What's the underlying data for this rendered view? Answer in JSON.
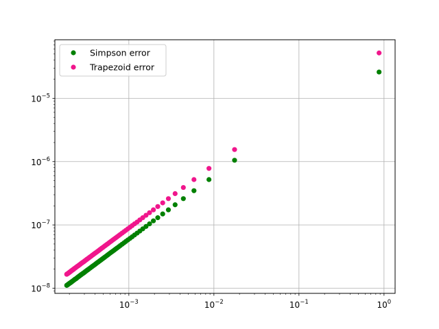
{
  "chart_data": {
    "type": "scatter",
    "title": "",
    "xlabel": "",
    "ylabel": "",
    "x_scale": "log",
    "y_scale": "log",
    "xlim": [
      0.000135,
      1.35
    ],
    "ylim": [
      8.3e-09,
      8.4e-05
    ],
    "grid": true,
    "legend_position": "upper left",
    "x_ticks": [
      {
        "value": 0.001,
        "base": "10",
        "exp": "−3"
      },
      {
        "value": 0.01,
        "base": "10",
        "exp": "−2"
      },
      {
        "value": 0.1,
        "base": "10",
        "exp": "−1"
      },
      {
        "value": 1,
        "base": "10",
        "exp": "0"
      }
    ],
    "y_ticks": [
      {
        "value": 1e-08,
        "base": "10",
        "exp": "−8"
      },
      {
        "value": 1e-07,
        "base": "10",
        "exp": "−7"
      },
      {
        "value": 1e-06,
        "base": "10",
        "exp": "−6"
      },
      {
        "value": 1e-05,
        "base": "10",
        "exp": "−5"
      }
    ],
    "series": [
      {
        "name": "Simpson error",
        "color": "#008000",
        "x": [
          0.875,
          0.0175,
          0.00875,
          0.00583,
          0.004375,
          0.0035,
          0.002917,
          0.0025,
          0.002188,
          0.001944,
          0.00175,
          0.001591,
          0.001458,
          0.001346,
          0.00125,
          0.001167,
          0.001094,
          0.00103,
          0.000972,
          0.000921,
          0.000875,
          0.000833,
          0.000795,
          0.000761,
          0.000729,
          0.0007,
          0.000673,
          0.000648,
          0.000625,
          0.000603,
          0.000583,
          0.000565,
          0.000547,
          0.00053,
          0.000515,
          0.0005,
          0.000486,
          0.000473,
          0.000461,
          0.000449,
          0.000438,
          0.000427,
          0.000417,
          0.000407,
          0.000398,
          0.000389,
          0.00038,
          0.000372,
          0.000365,
          0.000357,
          0.00035,
          0.000343,
          0.000337,
          0.00033,
          0.000324,
          0.000318,
          0.000313,
          0.000307,
          0.000302,
          0.000297,
          0.000292,
          0.000287,
          0.000282,
          0.000278,
          0.000273,
          0.000269,
          0.000265,
          0.000261,
          0.000257,
          0.000254,
          0.00025,
          0.000246,
          0.000243,
          0.00024,
          0.000236,
          0.000233,
          0.00023,
          0.000227,
          0.000224,
          0.000222,
          0.000219,
          0.000216,
          0.000213,
          0.000211,
          0.000208,
          0.000206,
          0.000203,
          0.000201,
          0.000199,
          0.000197,
          0.000194,
          0.000192,
          0.00019,
          0.000188,
          0.000186
        ],
        "y": [
          2.6e-05,
          1.05e-06,
          5.2e-07,
          3.47e-07,
          2.6e-07,
          2.08e-07,
          1.73e-07,
          1.49e-07,
          1.3e-07,
          1.16e-07,
          1.04e-07,
          9.46e-08,
          8.67e-08,
          8e-08,
          7.43e-08,
          6.94e-08,
          6.5e-08,
          6.12e-08,
          5.78e-08,
          5.48e-08,
          5.2e-08,
          4.95e-08,
          4.73e-08,
          4.52e-08,
          4.33e-08,
          4.16e-08,
          4e-08,
          3.85e-08,
          3.72e-08,
          3.59e-08,
          3.47e-08,
          3.36e-08,
          3.25e-08,
          3.15e-08,
          3.06e-08,
          2.97e-08,
          2.89e-08,
          2.81e-08,
          2.74e-08,
          2.67e-08,
          2.6e-08,
          2.54e-08,
          2.48e-08,
          2.42e-08,
          2.36e-08,
          2.31e-08,
          2.26e-08,
          2.21e-08,
          2.17e-08,
          2.12e-08,
          2.08e-08,
          2.04e-08,
          2e-08,
          1.96e-08,
          1.93e-08,
          1.89e-08,
          1.86e-08,
          1.83e-08,
          1.79e-08,
          1.76e-08,
          1.73e-08,
          1.71e-08,
          1.68e-08,
          1.65e-08,
          1.63e-08,
          1.6e-08,
          1.58e-08,
          1.55e-08,
          1.53e-08,
          1.51e-08,
          1.49e-08,
          1.46e-08,
          1.44e-08,
          1.42e-08,
          1.4e-08,
          1.39e-08,
          1.37e-08,
          1.35e-08,
          1.33e-08,
          1.32e-08,
          1.3e-08,
          1.28e-08,
          1.27e-08,
          1.25e-08,
          1.24e-08,
          1.22e-08,
          1.21e-08,
          1.2e-08,
          1.18e-08,
          1.17e-08,
          1.16e-08,
          1.14e-08,
          1.13e-08,
          1.12e-08,
          1.11e-08
        ]
      },
      {
        "name": "Trapezoid error",
        "color": "#f0168c",
        "x": [
          0.875,
          0.0175,
          0.00875,
          0.00583,
          0.004375,
          0.0035,
          0.002917,
          0.0025,
          0.002188,
          0.001944,
          0.00175,
          0.001591,
          0.001458,
          0.001346,
          0.00125,
          0.001167,
          0.001094,
          0.00103,
          0.000972,
          0.000921,
          0.000875,
          0.000833,
          0.000795,
          0.000761,
          0.000729,
          0.0007,
          0.000673,
          0.000648,
          0.000625,
          0.000603,
          0.000583,
          0.000565,
          0.000547,
          0.00053,
          0.000515,
          0.0005,
          0.000486,
          0.000473,
          0.000461,
          0.000449,
          0.000438,
          0.000427,
          0.000417,
          0.000407,
          0.000398,
          0.000389,
          0.00038,
          0.000372,
          0.000365,
          0.000357,
          0.00035,
          0.000343,
          0.000337,
          0.00033,
          0.000324,
          0.000318,
          0.000313,
          0.000307,
          0.000302,
          0.000297,
          0.000292,
          0.000287,
          0.000282,
          0.000278,
          0.000273,
          0.000269,
          0.000265,
          0.000261,
          0.000257,
          0.000254,
          0.00025,
          0.000246,
          0.000243,
          0.00024,
          0.000236,
          0.000233,
          0.00023,
          0.000227,
          0.000224,
          0.000222,
          0.000219,
          0.000216,
          0.000213,
          0.000211,
          0.000208,
          0.000206,
          0.000203,
          0.000201,
          0.000199,
          0.000197,
          0.000194,
          0.000192,
          0.00019,
          0.000188,
          0.000186
        ],
        "y": [
          5.2e-05,
          1.55e-06,
          7.8e-07,
          5.2e-07,
          3.9e-07,
          3.12e-07,
          2.6e-07,
          2.23e-07,
          1.95e-07,
          1.73e-07,
          1.56e-07,
          1.42e-07,
          1.3e-07,
          1.2e-07,
          1.11e-07,
          1.04e-07,
          9.75e-08,
          9.18e-08,
          8.67e-08,
          8.21e-08,
          7.8e-08,
          7.43e-08,
          7.09e-08,
          6.78e-08,
          6.5e-08,
          6.24e-08,
          6e-08,
          5.78e-08,
          5.57e-08,
          5.38e-08,
          5.2e-08,
          5.03e-08,
          4.88e-08,
          4.73e-08,
          4.59e-08,
          4.46e-08,
          4.33e-08,
          4.22e-08,
          4.11e-08,
          4e-08,
          3.9e-08,
          3.8e-08,
          3.71e-08,
          3.63e-08,
          3.55e-08,
          3.47e-08,
          3.39e-08,
          3.32e-08,
          3.25e-08,
          3.18e-08,
          3.12e-08,
          3.06e-08,
          3e-08,
          2.94e-08,
          2.89e-08,
          2.84e-08,
          2.79e-08,
          2.74e-08,
          2.69e-08,
          2.64e-08,
          2.6e-08,
          2.56e-08,
          2.52e-08,
          2.48e-08,
          2.44e-08,
          2.4e-08,
          2.36e-08,
          2.33e-08,
          2.29e-08,
          2.26e-08,
          2.23e-08,
          2.2e-08,
          2.17e-08,
          2.14e-08,
          2.11e-08,
          2.08e-08,
          2.05e-08,
          2.03e-08,
          2e-08,
          1.97e-08,
          1.95e-08,
          1.93e-08,
          1.9e-08,
          1.88e-08,
          1.86e-08,
          1.83e-08,
          1.81e-08,
          1.79e-08,
          1.77e-08,
          1.75e-08,
          1.73e-08,
          1.71e-08,
          1.69e-08,
          1.68e-08,
          1.66e-08
        ]
      }
    ]
  }
}
